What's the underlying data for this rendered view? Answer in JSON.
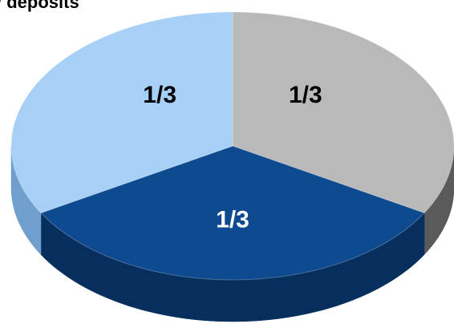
{
  "chart_data": {
    "type": "pie",
    "title": "/ deposits",
    "values": [
      0.3333,
      0.3333,
      0.3333
    ],
    "value_labels": [
      "1/3",
      "1/3",
      "1/3"
    ],
    "colors": [
      "#b9b9b9",
      "#0d4a8f",
      "#a7d0f6"
    ],
    "side_colors": [
      "#5a5a5a",
      "#062f5e",
      "#6f9fcc"
    ]
  }
}
